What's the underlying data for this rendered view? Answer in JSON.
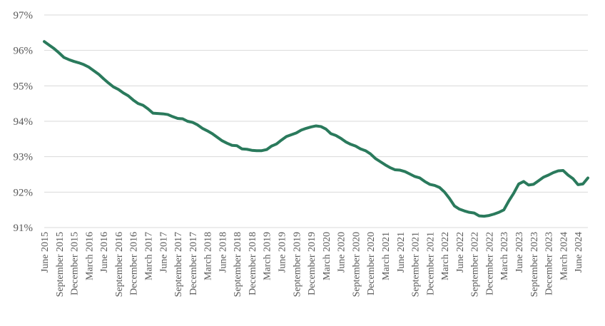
{
  "chart_data": {
    "type": "line",
    "title": "",
    "xlabel": "",
    "ylabel": "",
    "ylim": [
      91,
      97
    ],
    "y_ticks": [
      91,
      92,
      93,
      94,
      95,
      96,
      97
    ],
    "y_tick_labels": [
      "91%",
      "92%",
      "93%",
      "94%",
      "95%",
      "96%",
      "97%"
    ],
    "grid": "horizontal",
    "legend": "none",
    "line_color": "#2a7a5c",
    "x_start": "2015-06",
    "x_tick_labels": [
      "June 2015",
      "September 2015",
      "December 2015",
      "March 2016",
      "June 2016",
      "September 2016",
      "December 2016",
      "March 2017",
      "June 2017",
      "September 2017",
      "December 2017",
      "March 2018",
      "June 2018",
      "September 2018",
      "December 2018",
      "March 2019",
      "June 2019",
      "September 2019",
      "December 2019",
      "March 2020",
      "June 2020",
      "September 2020",
      "December 2020",
      "March 2021",
      "June 2021",
      "September 2021",
      "December 2021",
      "March 2022",
      "June 2022",
      "September 2022",
      "December 2022",
      "March 2023",
      "June 2023",
      "September 2023",
      "December 2023",
      "March 2024",
      "June 2024"
    ],
    "values": [
      96.25,
      96.15,
      96.05,
      95.93,
      95.8,
      95.74,
      95.69,
      95.65,
      95.6,
      95.53,
      95.43,
      95.33,
      95.2,
      95.08,
      94.97,
      94.9,
      94.8,
      94.72,
      94.6,
      94.5,
      94.45,
      94.35,
      94.23,
      94.22,
      94.21,
      94.19,
      94.13,
      94.08,
      94.07,
      94.0,
      93.97,
      93.9,
      93.8,
      93.73,
      93.65,
      93.55,
      93.45,
      93.38,
      93.32,
      93.31,
      93.22,
      93.21,
      93.18,
      93.17,
      93.17,
      93.2,
      93.3,
      93.36,
      93.47,
      93.57,
      93.62,
      93.67,
      93.75,
      93.8,
      93.84,
      93.87,
      93.85,
      93.78,
      93.65,
      93.6,
      93.52,
      93.42,
      93.35,
      93.3,
      93.22,
      93.17,
      93.08,
      92.95,
      92.86,
      92.77,
      92.69,
      92.63,
      92.62,
      92.58,
      92.51,
      92.44,
      92.4,
      92.3,
      92.22,
      92.19,
      92.13,
      92.0,
      91.82,
      91.61,
      91.52,
      91.47,
      91.43,
      91.41,
      91.33,
      91.32,
      91.34,
      91.38,
      91.43,
      91.5,
      91.75,
      91.97,
      92.23,
      92.3,
      92.2,
      92.22,
      92.32,
      92.42,
      92.48,
      92.55,
      92.6,
      92.61,
      92.48,
      92.38,
      92.21,
      92.23,
      92.4
    ]
  }
}
